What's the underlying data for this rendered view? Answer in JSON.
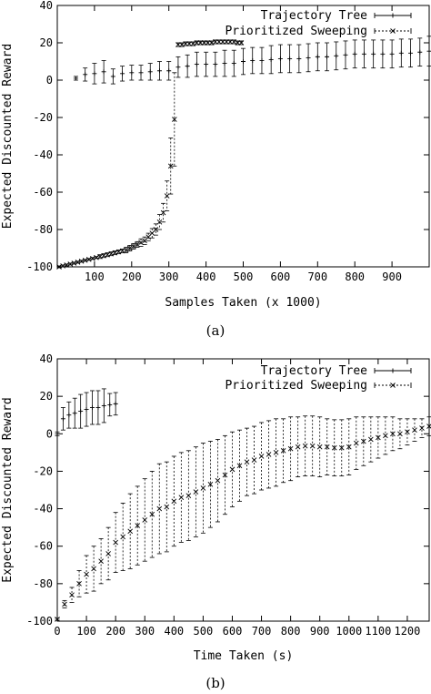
{
  "chart_data": [
    {
      "type": "line",
      "caption": "(a)",
      "xlabel": "Samples Taken (x 1000)",
      "ylabel": "Expected Discounted Reward",
      "xlim": [
        0,
        1000
      ],
      "ylim": [
        -100,
        40
      ],
      "xticks": [
        100,
        200,
        300,
        400,
        500,
        600,
        700,
        800,
        900
      ],
      "yticks": [
        -100,
        -80,
        -60,
        -40,
        -20,
        0,
        20,
        40
      ],
      "grid": false,
      "legend_position": "top-right",
      "series": [
        {
          "name": "Trajectory Tree",
          "style": "solid",
          "marker": "+",
          "x": [
            50,
            75,
            100,
            125,
            150,
            175,
            200,
            225,
            250,
            275,
            300,
            325,
            350,
            375,
            400,
            425,
            450,
            475,
            500,
            525,
            550,
            575,
            600,
            625,
            650,
            675,
            700,
            725,
            750,
            775,
            800,
            825,
            850,
            875,
            900,
            925,
            950,
            975,
            1000
          ],
          "y": [
            1,
            3,
            3.5,
            4.5,
            2,
            3.5,
            4,
            4,
            4.5,
            5,
            5,
            7,
            7.5,
            8.5,
            8.5,
            8.5,
            9,
            9,
            10,
            10.5,
            10.5,
            11,
            11.5,
            11.5,
            11.5,
            12,
            12.5,
            12.5,
            13,
            13.5,
            14,
            14,
            14,
            14,
            14,
            14.5,
            14.5,
            15,
            15.5
          ],
          "err": [
            1,
            3.5,
            5.5,
            6,
            4,
            4,
            4,
            4,
            4.5,
            5,
            5,
            5.5,
            6,
            6.5,
            6.5,
            6.5,
            7,
            7,
            7,
            7,
            7,
            7.5,
            7.5,
            7.5,
            7.5,
            7.5,
            7.5,
            7.5,
            7.5,
            7.5,
            7.5,
            7.5,
            7.5,
            7.5,
            7.5,
            7.5,
            7.5,
            7.5,
            8
          ]
        },
        {
          "name": "Prioritized Sweeping",
          "style": "dashed",
          "marker": "x",
          "x": [
            5,
            15,
            25,
            35,
            45,
            55,
            65,
            75,
            85,
            95,
            105,
            115,
            125,
            135,
            145,
            155,
            165,
            175,
            185,
            195,
            205,
            215,
            225,
            235,
            245,
            255,
            265,
            275,
            285,
            295,
            305,
            315,
            325,
            335,
            345,
            355,
            365,
            375,
            385,
            395,
            405,
            415,
            425,
            435,
            445,
            455,
            465,
            475,
            485,
            495
          ],
          "y": [
            -100,
            -99.5,
            -99,
            -98.5,
            -98,
            -97.5,
            -97,
            -96.5,
            -96,
            -95.5,
            -95,
            -94.5,
            -94,
            -93.5,
            -93,
            -92.5,
            -92,
            -91.5,
            -91,
            -90,
            -89,
            -88,
            -87,
            -86,
            -84,
            -82,
            -80,
            -76,
            -71,
            -62,
            -46,
            -21,
            19,
            19,
            19.5,
            19.5,
            19.5,
            20,
            20,
            20,
            20,
            20,
            20.5,
            20.5,
            20.5,
            20.5,
            20.5,
            20.5,
            20,
            20
          ],
          "err": [
            0.5,
            0.5,
            0.5,
            0.5,
            0.5,
            0.5,
            0.5,
            0.5,
            0.5,
            0.5,
            0.5,
            1,
            1,
            1,
            1,
            1,
            1,
            1,
            1.5,
            1.5,
            1.5,
            1.5,
            2,
            2,
            2,
            2.5,
            3,
            4,
            5,
            8,
            15,
            25,
            1,
            1,
            1,
            1,
            1,
            1,
            1,
            1,
            1,
            1,
            1,
            1,
            1,
            1,
            1,
            1,
            1,
            1
          ]
        }
      ]
    },
    {
      "type": "line",
      "caption": "(b)",
      "xlabel": "Time Taken (s)",
      "ylabel": "Expected Discounted Reward",
      "xlim": [
        0,
        1275
      ],
      "ylim": [
        -100,
        40
      ],
      "xticks": [
        0,
        100,
        200,
        300,
        400,
        500,
        600,
        700,
        800,
        900,
        1000,
        1100,
        1200
      ],
      "yticks": [
        -100,
        -80,
        -60,
        -40,
        -20,
        0,
        20,
        40
      ],
      "grid": false,
      "legend_position": "top-right",
      "series": [
        {
          "name": "Trajectory Tree",
          "style": "solid",
          "marker": "+",
          "x": [
            0,
            20,
            40,
            60,
            80,
            100,
            120,
            140,
            160,
            180,
            200
          ],
          "y": [
            0,
            8,
            10,
            11,
            12,
            13,
            14,
            14,
            15,
            15.5,
            16
          ],
          "err": [
            1,
            6,
            7,
            8,
            9,
            9,
            9,
            9,
            9,
            6,
            6
          ]
        },
        {
          "name": "Prioritized Sweeping",
          "style": "dashed",
          "marker": "x",
          "x": [
            0,
            25,
            50,
            75,
            100,
            125,
            150,
            175,
            200,
            225,
            250,
            275,
            300,
            325,
            350,
            375,
            400,
            425,
            450,
            475,
            500,
            525,
            550,
            575,
            600,
            625,
            650,
            675,
            700,
            725,
            750,
            775,
            800,
            825,
            850,
            875,
            900,
            925,
            950,
            975,
            1000,
            1025,
            1050,
            1075,
            1100,
            1125,
            1150,
            1175,
            1200,
            1225,
            1250,
            1275
          ],
          "y": [
            -99,
            -91,
            -86,
            -80,
            -75,
            -72,
            -68,
            -64,
            -58,
            -55,
            -52,
            -49,
            -46,
            -43,
            -40,
            -39,
            -36,
            -34,
            -33,
            -31,
            -29,
            -27,
            -25,
            -22,
            -19,
            -17,
            -15,
            -14,
            -12,
            -11,
            -10,
            -9,
            -8,
            -7,
            -6.5,
            -6.5,
            -7,
            -7,
            -7.5,
            -7.5,
            -7,
            -5,
            -4,
            -3,
            -2,
            -1,
            0,
            0,
            1,
            2,
            3,
            4
          ],
          "err": [
            0.5,
            2,
            4,
            7,
            10,
            12,
            12,
            14,
            16,
            18,
            20,
            21,
            22,
            23,
            24,
            24,
            24,
            24,
            24,
            24,
            24,
            23,
            22,
            21,
            20,
            19,
            18,
            18,
            18,
            18,
            18,
            17,
            17,
            16,
            16,
            16,
            16,
            15,
            15,
            15,
            15,
            14,
            13,
            12,
            11,
            10,
            9,
            8,
            7,
            6,
            5,
            5
          ]
        }
      ]
    }
  ]
}
